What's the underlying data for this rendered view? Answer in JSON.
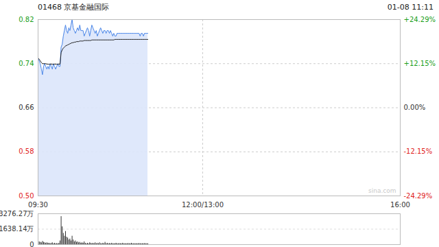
{
  "chart_data": [
    {
      "type": "line",
      "title": "01468 京基金融国际",
      "subtitle": "01-08 11:11",
      "annotation": "sina.com",
      "x": [
        0,
        1,
        2,
        3,
        4,
        5,
        6,
        7,
        8,
        9,
        10,
        11,
        12,
        13,
        14,
        15,
        16,
        17,
        18,
        19,
        20,
        21,
        22,
        23,
        24,
        25,
        26,
        27,
        28,
        29,
        30,
        31,
        32,
        33,
        34,
        35,
        36,
        37,
        38,
        39,
        40,
        41,
        42,
        43,
        44,
        45,
        46,
        47,
        48,
        49,
        50,
        51,
        52,
        53,
        54,
        55,
        56,
        57,
        58,
        59,
        60,
        61,
        62,
        63,
        64,
        65,
        66,
        67,
        68,
        69,
        70,
        71,
        72,
        73,
        74,
        75,
        76,
        77,
        78,
        79,
        80,
        81,
        82,
        83,
        84,
        85,
        86,
        87,
        88,
        89,
        90,
        91,
        92,
        93,
        94,
        95,
        96,
        97,
        98,
        99,
        100
      ],
      "series": [
        {
          "type": "area",
          "color": "#4a86e8",
          "values": [
            0.75,
            0.745,
            0.74,
            0.73,
            0.72,
            0.735,
            0.74,
            0.735,
            0.73,
            0.735,
            0.73,
            0.74,
            0.735,
            0.73,
            0.74,
            0.735,
            0.73,
            0.735,
            0.74,
            0.735,
            0.735,
            0.77,
            0.775,
            0.79,
            0.8,
            0.81,
            0.8,
            0.795,
            0.805,
            0.8,
            0.81,
            0.82,
            0.805,
            0.8,
            0.795,
            0.8,
            0.805,
            0.8,
            0.81,
            0.8,
            0.8,
            0.8,
            0.79,
            0.795,
            0.8,
            0.805,
            0.8,
            0.79,
            0.8,
            0.81,
            0.805,
            0.8,
            0.795,
            0.8,
            0.79,
            0.795,
            0.8,
            0.805,
            0.8,
            0.795,
            0.8,
            0.8,
            0.795,
            0.8,
            0.8,
            0.795,
            0.8,
            0.795,
            0.79,
            0.795,
            0.79,
            0.79,
            0.795,
            0.795,
            0.795,
            0.795,
            0.795,
            0.795,
            0.795,
            0.795,
            0.795,
            0.795,
            0.795,
            0.795,
            0.795,
            0.795,
            0.795,
            0.795,
            0.795,
            0.795,
            0.795,
            0.795,
            0.795,
            0.79,
            0.795,
            0.795,
            0.79,
            0.795,
            0.795,
            0.795,
            0.795
          ]
        },
        {
          "type": "line",
          "color": "#222222",
          "values": [
            0.75,
            0.748,
            0.745,
            0.742,
            0.74,
            0.74,
            0.74,
            0.74,
            0.739,
            0.739,
            0.739,
            0.739,
            0.739,
            0.739,
            0.739,
            0.739,
            0.739,
            0.739,
            0.739,
            0.739,
            0.739,
            0.76,
            0.765,
            0.768,
            0.77,
            0.772,
            0.773,
            0.774,
            0.775,
            0.776,
            0.777,
            0.778,
            0.778,
            0.779,
            0.779,
            0.78,
            0.78,
            0.78,
            0.781,
            0.781,
            0.781,
            0.781,
            0.782,
            0.782,
            0.782,
            0.782,
            0.782,
            0.782,
            0.782,
            0.783,
            0.783,
            0.783,
            0.783,
            0.783,
            0.783,
            0.783,
            0.783,
            0.783,
            0.783,
            0.783,
            0.783,
            0.783,
            0.783,
            0.783,
            0.783,
            0.783,
            0.783,
            0.783,
            0.783,
            0.783,
            0.784,
            0.784,
            0.784,
            0.784,
            0.784,
            0.784,
            0.784,
            0.784,
            0.784,
            0.784,
            0.784,
            0.784,
            0.784,
            0.784,
            0.784,
            0.784,
            0.784,
            0.784,
            0.784,
            0.784,
            0.784,
            0.784,
            0.784,
            0.784,
            0.784,
            0.784,
            0.784,
            0.784,
            0.784,
            0.784,
            0.784
          ]
        }
      ],
      "xlim": [
        0,
        330
      ],
      "xticks": [
        {
          "value": 0,
          "label": "09:30"
        },
        {
          "value": 150,
          "label": "12:00/13:00"
        },
        {
          "value": 330,
          "label": "16:00"
        }
      ],
      "ylim": [
        0.5,
        0.82
      ],
      "yticks": [
        {
          "value": 0.5,
          "label": "0.50"
        },
        0.58,
        0.66,
        0.74,
        0.82
      ],
      "y2lim": [
        -24.29,
        24.29
      ],
      "y2ticks": [
        {
          "value": -24.29,
          "label": "-24.29%"
        },
        {
          "value": -12.15,
          "label": "-12.15%"
        },
        {
          "value": 0,
          "label": "0.00%"
        },
        {
          "value": 12.15,
          "label": "+12.15%"
        },
        {
          "value": 24.29,
          "label": "+24.29%"
        }
      ],
      "grid": true
    },
    {
      "type": "bar",
      "color": "#333333",
      "x": [
        0,
        1,
        2,
        3,
        4,
        5,
        6,
        7,
        8,
        9,
        10,
        11,
        12,
        13,
        14,
        15,
        16,
        17,
        18,
        19,
        20,
        21,
        22,
        23,
        24,
        25,
        26,
        27,
        28,
        29,
        30,
        31,
        32,
        33,
        34,
        35,
        36,
        37,
        38,
        39,
        40,
        41,
        42,
        43,
        44,
        45,
        46,
        47,
        48,
        49,
        50,
        51,
        52,
        53,
        54,
        55,
        56,
        57,
        58,
        59,
        60,
        61,
        62,
        63,
        64,
        65,
        66,
        67,
        68,
        69,
        70,
        71,
        72,
        73,
        74,
        75,
        76,
        77,
        78,
        79,
        80,
        81,
        82,
        83,
        84,
        85,
        86,
        87,
        88,
        89,
        90,
        91,
        92,
        93,
        94,
        95,
        96,
        97,
        98,
        99,
        100
      ],
      "values": [
        700,
        300,
        250,
        200,
        350,
        250,
        200,
        150,
        200,
        150,
        150,
        100,
        150,
        200,
        100,
        150,
        100,
        120,
        100,
        150,
        400,
        2980,
        1900,
        1200,
        900,
        1400,
        800,
        700,
        500,
        600,
        400,
        900,
        500,
        300,
        400,
        250,
        300,
        200,
        250,
        150,
        200,
        150,
        300,
        150,
        100,
        150,
        100,
        200,
        150,
        100,
        150,
        100,
        200,
        100,
        150,
        100,
        200,
        100,
        100,
        150,
        100,
        250,
        100,
        150,
        100,
        120,
        100,
        150,
        100,
        100,
        100,
        150,
        100,
        100,
        120,
        100,
        100,
        150,
        100,
        100,
        100,
        100,
        120,
        100,
        100,
        150,
        100,
        100,
        100,
        100,
        100,
        100,
        120,
        100,
        100,
        100,
        100,
        120,
        100,
        100,
        100
      ],
      "xlim": [
        0,
        330
      ],
      "ylim": [
        0,
        3276.27
      ],
      "yticks": [
        {
          "value": 0,
          "label": "0"
        },
        {
          "value": 1638.14,
          "label": "1638.14万"
        },
        {
          "value": 3276.27,
          "label": "3276.27万"
        }
      ],
      "tick_labels": "y",
      "grid": true
    }
  ]
}
